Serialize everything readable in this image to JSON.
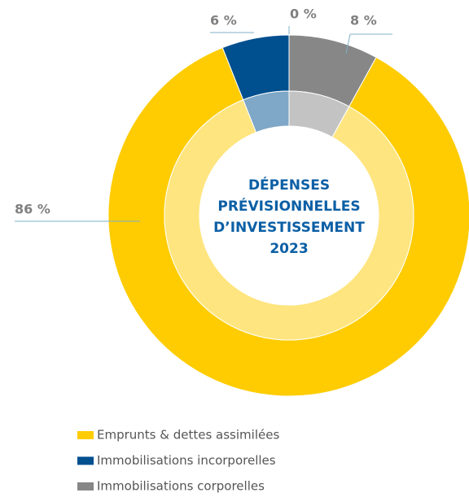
{
  "chart_data": {
    "type": "donut",
    "title": [
      "DÉPENSES",
      "PRÉVISIONNELLES",
      "D’INVESTISSEMENT",
      "2023"
    ],
    "categories": [
      "Emprunts & dettes assimilées",
      "Immobilisations incorporelles",
      null,
      "Immobilisations corporelles"
    ],
    "values": [
      86,
      6,
      0,
      8
    ],
    "value_labels": [
      "86 %",
      "6 %",
      "0 %",
      "8 %"
    ],
    "colors": [
      "#fecc00",
      "#004f8f",
      "#c8c8c8",
      "#878787"
    ]
  }
}
